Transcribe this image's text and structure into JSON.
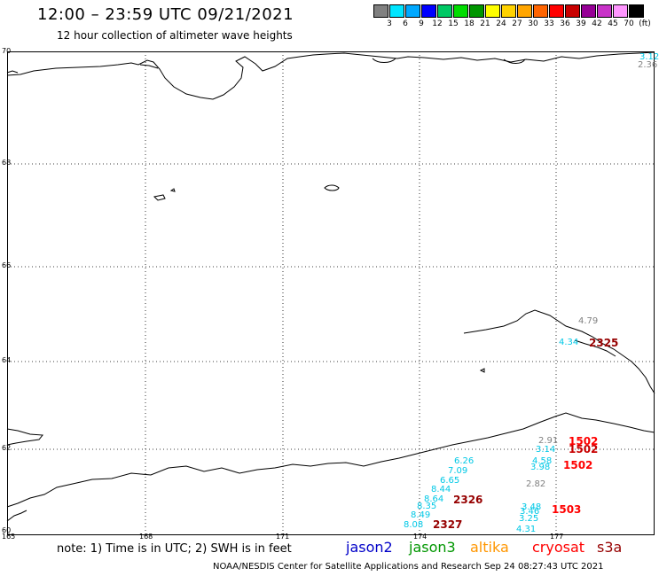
{
  "header": {
    "title": "12:00 – 23:59 UTC 09/21/2021",
    "subtitle": "12 hour collection of altimeter wave heights"
  },
  "legend": {
    "colors": [
      "#808080",
      "#00e5ff",
      "#00a8ff",
      "#0000ff",
      "#00c864",
      "#00dc00",
      "#009600",
      "#ffff00",
      "#ffd200",
      "#ffa500",
      "#ff6400",
      "#ff0000",
      "#c80000",
      "#960096",
      "#c832c8",
      "#ff96ff",
      "#000000"
    ],
    "ticks": [
      "3",
      "6",
      "9",
      "12",
      "15",
      "18",
      "21",
      "24",
      "27",
      "30",
      "33",
      "36",
      "39",
      "42",
      "45",
      "70",
      "(ft)"
    ]
  },
  "map": {
    "lat_labels": [
      "70",
      "68",
      "66",
      "64",
      "62",
      "60"
    ],
    "lon_labels": [
      "165",
      "168",
      "171",
      "174",
      "177"
    ],
    "wave_heights": {
      "north_corner_1": "3.12",
      "north_corner_2": "2.36",
      "norton_1": "4.79",
      "norton_2": "4.34",
      "w1": "2.91",
      "w2": "3.14",
      "w3": "4.58",
      "w4": "3.98",
      "w5": "2.82",
      "w6": "3.48",
      "w7": "3.46",
      "w8": "3.25",
      "w9": "4.31",
      "t1": "6.26",
      "t2": "7.09",
      "t3": "6.65",
      "t4": "8.44",
      "t5": "8.64",
      "t6": "8.35",
      "t7": "8.49",
      "t8": "8.08"
    },
    "passes": {
      "p2325": "2325",
      "p1502a": "1502",
      "p1502b": "1502",
      "p1502c": "1502",
      "p2326": "2326",
      "p2327": "2327",
      "p1503": "1503"
    }
  },
  "footer": {
    "note": "note: 1) Time is in UTC; 2) SWH is in feet",
    "satellites": [
      {
        "name": "jason2",
        "color": "#0000c8"
      },
      {
        "name": "jason3",
        "color": "#009600"
      },
      {
        "name": "altika",
        "color": "#ff9600"
      },
      {
        "name": "cryosat",
        "color": "#ff0000"
      },
      {
        "name": "s3a",
        "color": "#960000"
      }
    ],
    "credit": "NOAA/NESDIS Center for Satellite Applications and Research     Sep 24 08:27:43 UTC 2021"
  }
}
